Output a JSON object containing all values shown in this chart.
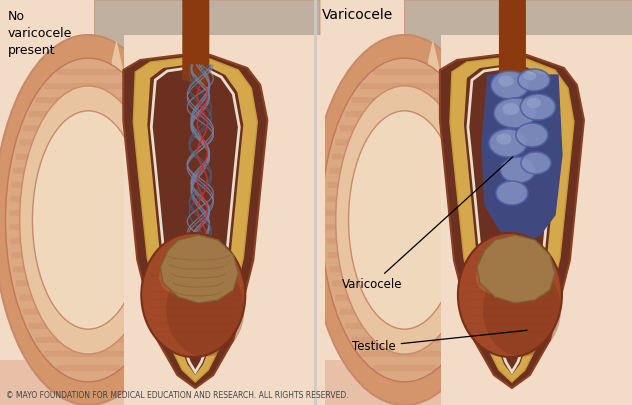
{
  "bg_white": "#ffffff",
  "bg_skin": "#f2dcc8",
  "left_label": "No\nvaricocele\npresent",
  "right_label": "Varicocele",
  "varicocele_label": "Varicocele",
  "testicle_label": "Testicle",
  "footer": "© MAYO FOUNDATION FOR MEDICAL EDUCATION AND RESEARCH. ALL RIGHTS RESERVED.",
  "skin_1": "#d4956a",
  "skin_2": "#c9896a",
  "skin_3": "#dba882",
  "skin_4": "#e8c4a0",
  "skin_5": "#f0d8bc",
  "muscle_stripe": "#c07858",
  "fat_yellow": "#d4a84b",
  "fat_yellow2": "#c89838",
  "inner_dark_brown": "#6b3020",
  "sheath_brown": "#8b4020",
  "sheath_gold": "#c8902a",
  "sheath_white": "#e8ddc8",
  "cord_blue": "#7080a0",
  "cord_dark_blue": "#505870",
  "cord_red": "#cc3030",
  "vein_blue": "#5060a0",
  "vein_light_blue": "#8090c0",
  "vein_purple": "#404880",
  "testicle_dark": "#7a3018",
  "testicle_mid": "#a04828",
  "testicle_light": "#c06840",
  "epid_color": "#a07848",
  "epid_dark": "#806030",
  "cord_brown": "#8b3a10",
  "body_pink": "#e8c0a8",
  "gray_tissue": "#c0b0a0",
  "divider_color": "#cccccc"
}
